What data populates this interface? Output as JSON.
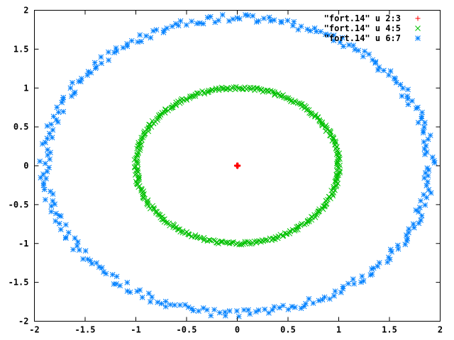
{
  "chart_data": {
    "type": "scatter",
    "title": "",
    "xlabel": "",
    "ylabel": "",
    "xlim": [
      -2,
      2
    ],
    "ylim": [
      -2,
      2
    ],
    "xticks": [
      "-2",
      "-1.5",
      "-1",
      "-0.5",
      "0",
      "0.5",
      "1",
      "1.5",
      "2"
    ],
    "yticks": [
      "-2",
      "-1.5",
      "-1",
      "-0.5",
      "0",
      "0.5",
      "1",
      "1.5",
      "2"
    ],
    "xtick_values": [
      -2,
      -1.5,
      -1,
      -0.5,
      0,
      0.5,
      1,
      1.5,
      2
    ],
    "ytick_values": [
      -2,
      -1.5,
      -1,
      -0.5,
      0,
      0.5,
      1,
      1.5,
      2
    ],
    "grid": false,
    "legend_position": "top-right",
    "series": [
      {
        "name": "\"fort.14\" u 2:3",
        "marker": "plus",
        "color": "#ff0000",
        "shape": "point-cluster",
        "center": [
          0,
          0
        ],
        "radius": 0.02,
        "points": 30
      },
      {
        "name": "\"fort.14\" u 4:5",
        "marker": "cross",
        "color": "#00c000",
        "shape": "ring",
        "center": [
          0,
          0
        ],
        "radius": 1.0,
        "noise": 0.02,
        "points": 420
      },
      {
        "name": "\"fort.14\" u 6:7",
        "marker": "asterisk",
        "color": "#0080ff",
        "shape": "ring",
        "center": [
          0,
          0
        ],
        "radius": 1.9,
        "noise": 0.05,
        "points": 300
      }
    ]
  }
}
